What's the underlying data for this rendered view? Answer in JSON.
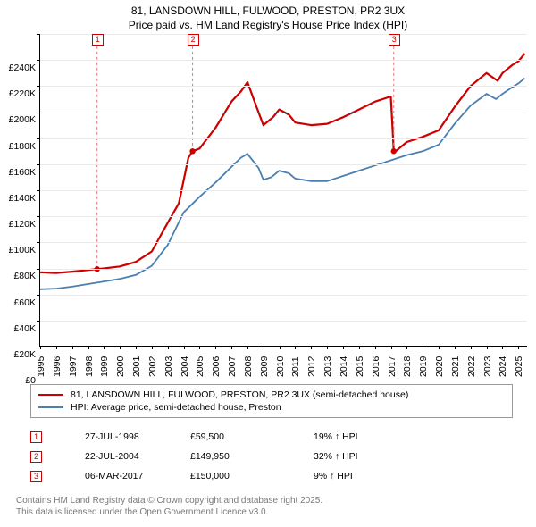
{
  "title": {
    "line1": "81, LANSDOWN HILL, FULWOOD, PRESTON, PR2 3UX",
    "line2": "Price paid vs. HM Land Registry's House Price Index (HPI)"
  },
  "chart": {
    "type": "line",
    "background_color": "#ffffff",
    "grid_color": "#ebebeb",
    "axis_color": "#000000",
    "title_fontsize": 12,
    "label_fontsize": 10.5,
    "x": {
      "min": 1995,
      "max": 2025.6,
      "tick_start": 1995,
      "tick_step": 1,
      "labels": [
        "1995",
        "1996",
        "1997",
        "1998",
        "1999",
        "2000",
        "2001",
        "2002",
        "2003",
        "2004",
        "2005",
        "2006",
        "2007",
        "2008",
        "2009",
        "2010",
        "2011",
        "2012",
        "2013",
        "2014",
        "2015",
        "2016",
        "2017",
        "2018",
        "2019",
        "2020",
        "2021",
        "2022",
        "2023",
        "2024",
        "2025"
      ]
    },
    "y": {
      "min": 0,
      "max": 240000,
      "tick_step": 20000,
      "labels": [
        "£0",
        "£20K",
        "£40K",
        "£60K",
        "£80K",
        "£100K",
        "£120K",
        "£140K",
        "£160K",
        "£180K",
        "£200K",
        "£220K",
        "£240K"
      ]
    },
    "series": [
      {
        "id": "price_paid",
        "label": "81, LANSDOWN HILL, FULWOOD, PRESTON, PR2 3UX (semi-detached house)",
        "color": "#cc0000",
        "line_width": 2.2,
        "data": [
          [
            1995,
            57000
          ],
          [
            1996,
            56500
          ],
          [
            1997,
            57500
          ],
          [
            1998.57,
            59500
          ],
          [
            1999,
            60000
          ],
          [
            2000,
            61500
          ],
          [
            2001,
            65000
          ],
          [
            2002,
            73000
          ],
          [
            2003,
            95000
          ],
          [
            2003.7,
            110000
          ],
          [
            2004.3,
            145000
          ],
          [
            2004.56,
            149950
          ],
          [
            2005,
            152000
          ],
          [
            2006,
            168000
          ],
          [
            2007,
            188000
          ],
          [
            2007.6,
            196000
          ],
          [
            2008,
            203000
          ],
          [
            2008.6,
            183000
          ],
          [
            2009,
            170000
          ],
          [
            2009.6,
            176000
          ],
          [
            2010,
            182000
          ],
          [
            2010.6,
            178000
          ],
          [
            2011,
            172000
          ],
          [
            2012,
            170000
          ],
          [
            2013,
            171000
          ],
          [
            2014,
            176000
          ],
          [
            2015,
            182000
          ],
          [
            2016,
            188000
          ],
          [
            2017,
            192000
          ],
          [
            2017.18,
            150000
          ],
          [
            2017.3,
            150000
          ],
          [
            2018,
            157000
          ],
          [
            2019,
            161000
          ],
          [
            2020,
            166000
          ],
          [
            2021,
            184000
          ],
          [
            2022,
            200000
          ],
          [
            2023,
            210000
          ],
          [
            2023.7,
            204000
          ],
          [
            2024,
            210000
          ],
          [
            2024.6,
            216000
          ],
          [
            2025,
            219000
          ],
          [
            2025.4,
            225000
          ]
        ],
        "markers": [
          {
            "label": "1",
            "x": 1998.57,
            "y": 59500
          },
          {
            "label": "2",
            "x": 2004.56,
            "y": 149950
          },
          {
            "label": "3",
            "x": 2017.18,
            "y": 150000
          }
        ]
      },
      {
        "id": "hpi",
        "label": "HPI: Average price, semi-detached house, Preston",
        "color": "#4a7fb0",
        "line_width": 1.8,
        "data": [
          [
            1995,
            44000
          ],
          [
            1996,
            44500
          ],
          [
            1997,
            46000
          ],
          [
            1998,
            48000
          ],
          [
            1999,
            50000
          ],
          [
            2000,
            52000
          ],
          [
            2001,
            55000
          ],
          [
            2002,
            62000
          ],
          [
            2003,
            78000
          ],
          [
            2004,
            103000
          ],
          [
            2005,
            115000
          ],
          [
            2006,
            126000
          ],
          [
            2007,
            138000
          ],
          [
            2007.6,
            145000
          ],
          [
            2008,
            148000
          ],
          [
            2008.7,
            137000
          ],
          [
            2009,
            128000
          ],
          [
            2009.5,
            130000
          ],
          [
            2010,
            135000
          ],
          [
            2010.6,
            133000
          ],
          [
            2011,
            129000
          ],
          [
            2012,
            127000
          ],
          [
            2013,
            127000
          ],
          [
            2014,
            131000
          ],
          [
            2015,
            135000
          ],
          [
            2016,
            139000
          ],
          [
            2017,
            143000
          ],
          [
            2018,
            147000
          ],
          [
            2019,
            150000
          ],
          [
            2020,
            155000
          ],
          [
            2021,
            171000
          ],
          [
            2022,
            185000
          ],
          [
            2023,
            194000
          ],
          [
            2023.6,
            190000
          ],
          [
            2024,
            194000
          ],
          [
            2024.6,
            199000
          ],
          [
            2025,
            202000
          ],
          [
            2025.4,
            206000
          ]
        ]
      }
    ],
    "marker_box": {
      "border_color": "#cc0000",
      "text_color": "#cc0000",
      "size": 13,
      "chart_top_y": 236000
    },
    "marker_dash": {
      "color": "#d97a7a",
      "width": 1,
      "dash": "3,3"
    }
  },
  "legend": {
    "items": [
      {
        "color": "#cc0000",
        "text": "81, LANSDOWN HILL, FULWOOD, PRESTON, PR2 3UX (semi-detached house)"
      },
      {
        "color": "#4a7fb0",
        "text": "HPI: Average price, semi-detached house, Preston"
      }
    ]
  },
  "events": [
    {
      "n": "1",
      "date": "27-JUL-1998",
      "price": "£59,500",
      "delta": "19% ↑ HPI"
    },
    {
      "n": "2",
      "date": "22-JUL-2004",
      "price": "£149,950",
      "delta": "32% ↑ HPI"
    },
    {
      "n": "3",
      "date": "06-MAR-2017",
      "price": "£150,000",
      "delta": "9% ↑ HPI"
    }
  ],
  "footer": {
    "line1": "Contains HM Land Registry data © Crown copyright and database right 2025.",
    "line2": "This data is licensed under the Open Government Licence v3.0."
  }
}
